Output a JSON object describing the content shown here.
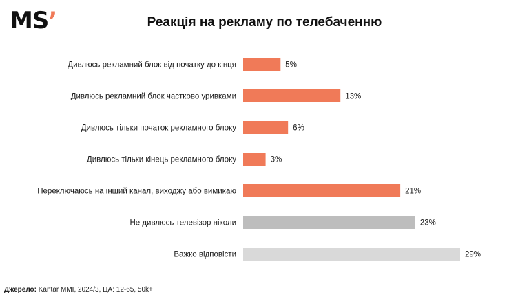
{
  "logo": {
    "text": "MS",
    "mark": "’"
  },
  "title": "Реакція на рекламу по телебаченню",
  "source": {
    "label": "Джерело:",
    "text": "Kantar MMI, 2024/3, ЦА: 12-65, 50k+"
  },
  "colors": {
    "accent": "#f07a58",
    "neutral_dark": "#bdbdbd",
    "neutral_light": "#d9d9d9"
  },
  "chart_data": {
    "type": "bar",
    "orientation": "horizontal",
    "title": "Реакція на рекламу по телебаченню",
    "categories": [
      "Дивлюсь рекламний блок від початку до кінця",
      "Дивлюсь рекламний блок частково уривками",
      "Дивлюсь тільки початок рекламного блоку",
      "Дивлюсь тільки кінець рекламного блоку",
      "Переключаюсь на інший канал, виходжу або вимикаю",
      "Не дивлюсь телевізор ніколи",
      "Важко відповісти"
    ],
    "values": [
      5,
      13,
      6,
      3,
      21,
      23,
      29
    ],
    "labels": [
      "5%",
      "13%",
      "6%",
      "3%",
      "21%",
      "23%",
      "29%"
    ],
    "colors": [
      "#f07a58",
      "#f07a58",
      "#f07a58",
      "#f07a58",
      "#f07a58",
      "#bdbdbd",
      "#d9d9d9"
    ],
    "unit": "%",
    "xlim": [
      0,
      29
    ],
    "grid": false,
    "legend": "none"
  }
}
